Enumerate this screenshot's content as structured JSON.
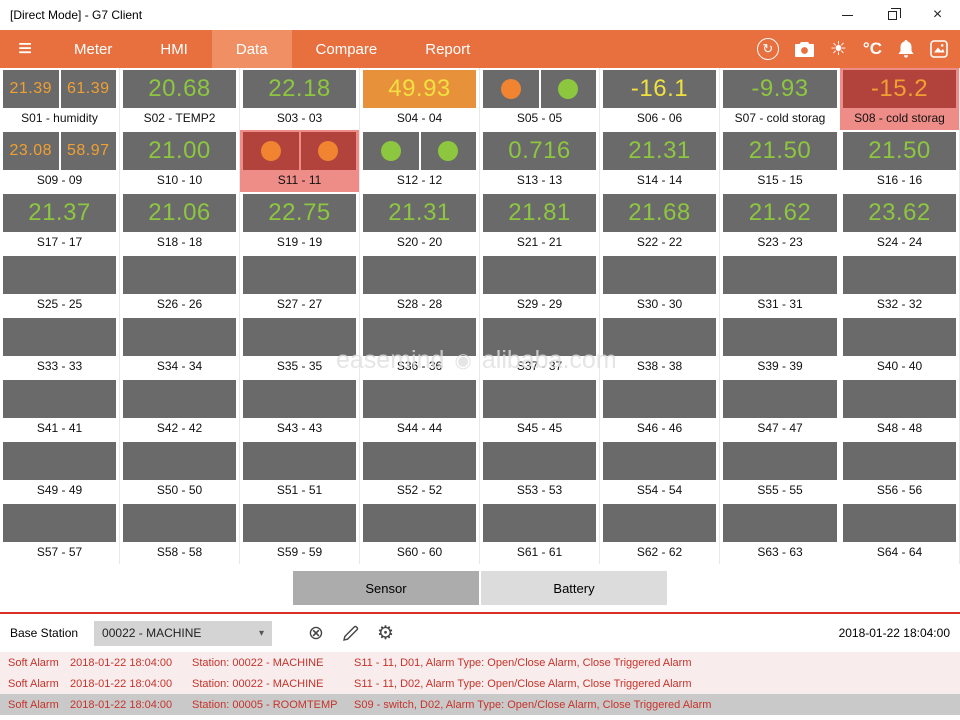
{
  "window": {
    "title": "[Direct Mode] - G7 Client"
  },
  "icons": {
    "menu": "≡",
    "sync": "↻",
    "brightness": "☀",
    "close_window": "×",
    "close_circle": "⊗",
    "gear": "⚙",
    "chevron_down": "▾",
    "logo_dot": "◉"
  },
  "nav": {
    "tabs": [
      {
        "label": "Meter",
        "active": false
      },
      {
        "label": "HMI",
        "active": false
      },
      {
        "label": "Data",
        "active": true
      },
      {
        "label": "Compare",
        "active": false
      },
      {
        "label": "Report",
        "active": false
      }
    ],
    "temperature_unit": "°C"
  },
  "sensors": [
    {
      "label": "S01 - humidity",
      "kind": "dual",
      "values": [
        "21.39",
        "61.39"
      ],
      "colors": [
        "orange",
        "orange"
      ]
    },
    {
      "label": "S02 - TEMP2",
      "kind": "single",
      "values": [
        "20.68"
      ],
      "colors": [
        "green"
      ]
    },
    {
      "label": "S03 - 03",
      "kind": "single",
      "values": [
        "22.18"
      ],
      "colors": [
        "green"
      ]
    },
    {
      "label": "S04 - 04",
      "kind": "single",
      "values": [
        "49.93"
      ],
      "colors": [
        "yellow"
      ],
      "box": "orange"
    },
    {
      "label": "S05 - 05",
      "kind": "circles",
      "circles": [
        "orange",
        "green"
      ]
    },
    {
      "label": "S06 - 06",
      "kind": "single",
      "values": [
        "-16.1"
      ],
      "colors": [
        "yellow"
      ]
    },
    {
      "label": "S07 - cold storag",
      "kind": "single",
      "values": [
        "-9.93"
      ],
      "colors": [
        "green"
      ]
    },
    {
      "label": "S08 - cold storag",
      "kind": "single",
      "values": [
        "-15.2"
      ],
      "colors": [
        "orange"
      ],
      "box": "red",
      "alert": true
    },
    {
      "label": "S09 - 09",
      "kind": "dual",
      "values": [
        "23.08",
        "58.97"
      ],
      "colors": [
        "orange",
        "orange"
      ]
    },
    {
      "label": "S10 - 10",
      "kind": "single",
      "values": [
        "21.00"
      ],
      "colors": [
        "green"
      ]
    },
    {
      "label": "S11 - 11",
      "kind": "circles",
      "circles": [
        "orange",
        "orange"
      ],
      "box": "red",
      "alert": true
    },
    {
      "label": "S12 - 12",
      "kind": "circles",
      "circles": [
        "green",
        "green"
      ]
    },
    {
      "label": "S13 - 13",
      "kind": "single",
      "values": [
        "0.716"
      ],
      "colors": [
        "green"
      ]
    },
    {
      "label": "S14 - 14",
      "kind": "single",
      "values": [
        "21.31"
      ],
      "colors": [
        "green"
      ]
    },
    {
      "label": "S15 - 15",
      "kind": "single",
      "values": [
        "21.50"
      ],
      "colors": [
        "green"
      ]
    },
    {
      "label": "S16 - 16",
      "kind": "single",
      "values": [
        "21.50"
      ],
      "colors": [
        "green"
      ]
    },
    {
      "label": "S17 - 17",
      "kind": "single",
      "values": [
        "21.37"
      ],
      "colors": [
        "green"
      ]
    },
    {
      "label": "S18 - 18",
      "kind": "single",
      "values": [
        "21.06"
      ],
      "colors": [
        "green"
      ]
    },
    {
      "label": "S19 - 19",
      "kind": "single",
      "values": [
        "22.75"
      ],
      "colors": [
        "green"
      ]
    },
    {
      "label": "S20 - 20",
      "kind": "single",
      "values": [
        "21.31"
      ],
      "colors": [
        "green"
      ]
    },
    {
      "label": "S21 - 21",
      "kind": "single",
      "values": [
        "21.81"
      ],
      "colors": [
        "green"
      ]
    },
    {
      "label": "S22 - 22",
      "kind": "single",
      "values": [
        "21.68"
      ],
      "colors": [
        "green"
      ]
    },
    {
      "label": "S23 - 23",
      "kind": "single",
      "values": [
        "21.62"
      ],
      "colors": [
        "green"
      ]
    },
    {
      "label": "S24 - 24",
      "kind": "single",
      "values": [
        "23.62"
      ],
      "colors": [
        "green"
      ]
    },
    {
      "label": "S25 - 25",
      "kind": "empty"
    },
    {
      "label": "S26 - 26",
      "kind": "empty"
    },
    {
      "label": "S27 - 27",
      "kind": "empty"
    },
    {
      "label": "S28 - 28",
      "kind": "empty"
    },
    {
      "label": "S29 - 29",
      "kind": "empty"
    },
    {
      "label": "S30 - 30",
      "kind": "empty"
    },
    {
      "label": "S31 - 31",
      "kind": "empty"
    },
    {
      "label": "S32 - 32",
      "kind": "empty"
    },
    {
      "label": "S33 - 33",
      "kind": "empty"
    },
    {
      "label": "S34 - 34",
      "kind": "empty"
    },
    {
      "label": "S35 - 35",
      "kind": "empty"
    },
    {
      "label": "S36 - 36",
      "kind": "empty"
    },
    {
      "label": "S37 - 37",
      "kind": "empty"
    },
    {
      "label": "S38 - 38",
      "kind": "empty"
    },
    {
      "label": "S39 - 39",
      "kind": "empty"
    },
    {
      "label": "S40 - 40",
      "kind": "empty"
    },
    {
      "label": "S41 - 41",
      "kind": "empty"
    },
    {
      "label": "S42 - 42",
      "kind": "empty"
    },
    {
      "label": "S43 - 43",
      "kind": "empty"
    },
    {
      "label": "S44 - 44",
      "kind": "empty"
    },
    {
      "label": "S45 - 45",
      "kind": "empty"
    },
    {
      "label": "S46 - 46",
      "kind": "empty"
    },
    {
      "label": "S47 - 47",
      "kind": "empty"
    },
    {
      "label": "S48 - 48",
      "kind": "empty"
    },
    {
      "label": "S49 - 49",
      "kind": "empty"
    },
    {
      "label": "S50 - 50",
      "kind": "empty"
    },
    {
      "label": "S51 - 51",
      "kind": "empty"
    },
    {
      "label": "S52 - 52",
      "kind": "empty"
    },
    {
      "label": "S53 - 53",
      "kind": "empty"
    },
    {
      "label": "S54 - 54",
      "kind": "empty"
    },
    {
      "label": "S55 - 55",
      "kind": "empty"
    },
    {
      "label": "S56 - 56",
      "kind": "empty"
    },
    {
      "label": "S57 - 57",
      "kind": "empty"
    },
    {
      "label": "S58 - 58",
      "kind": "empty"
    },
    {
      "label": "S59 - 59",
      "kind": "empty"
    },
    {
      "label": "S60 - 60",
      "kind": "empty"
    },
    {
      "label": "S61 - 61",
      "kind": "empty"
    },
    {
      "label": "S62 - 62",
      "kind": "empty"
    },
    {
      "label": "S63 - 63",
      "kind": "empty"
    },
    {
      "label": "S64 - 64",
      "kind": "empty"
    }
  ],
  "footer_tabs": [
    {
      "label": "Sensor",
      "active": true
    },
    {
      "label": "Battery",
      "active": false
    }
  ],
  "base_station": {
    "label": "Base Station",
    "selected": "00022 - MACHINE",
    "timestamp": "2018-01-22 18:04:00"
  },
  "alarms": [
    {
      "type": "Soft Alarm",
      "time": "2018-01-22 18:04:00",
      "station": "Station: 00022 - MACHINE",
      "detail": "S11 - 11, D01, Alarm Type: Open/Close Alarm, Close Triggered Alarm",
      "selected": false
    },
    {
      "type": "Soft Alarm",
      "time": "2018-01-22 18:04:00",
      "station": "Station: 00022 - MACHINE",
      "detail": "S11 - 11, D02, Alarm Type: Open/Close Alarm, Close Triggered Alarm",
      "selected": false
    },
    {
      "type": "Soft Alarm",
      "time": "2018-01-22 18:04:00",
      "station": "Station: 00005 - ROOMTEMP",
      "detail": "S09 - switch, D02, Alarm Type: Open/Close Alarm, Close Triggered Alarm",
      "selected": true
    }
  ],
  "watermark": {
    "brand": "easemind",
    "site": "alibaba.com"
  }
}
